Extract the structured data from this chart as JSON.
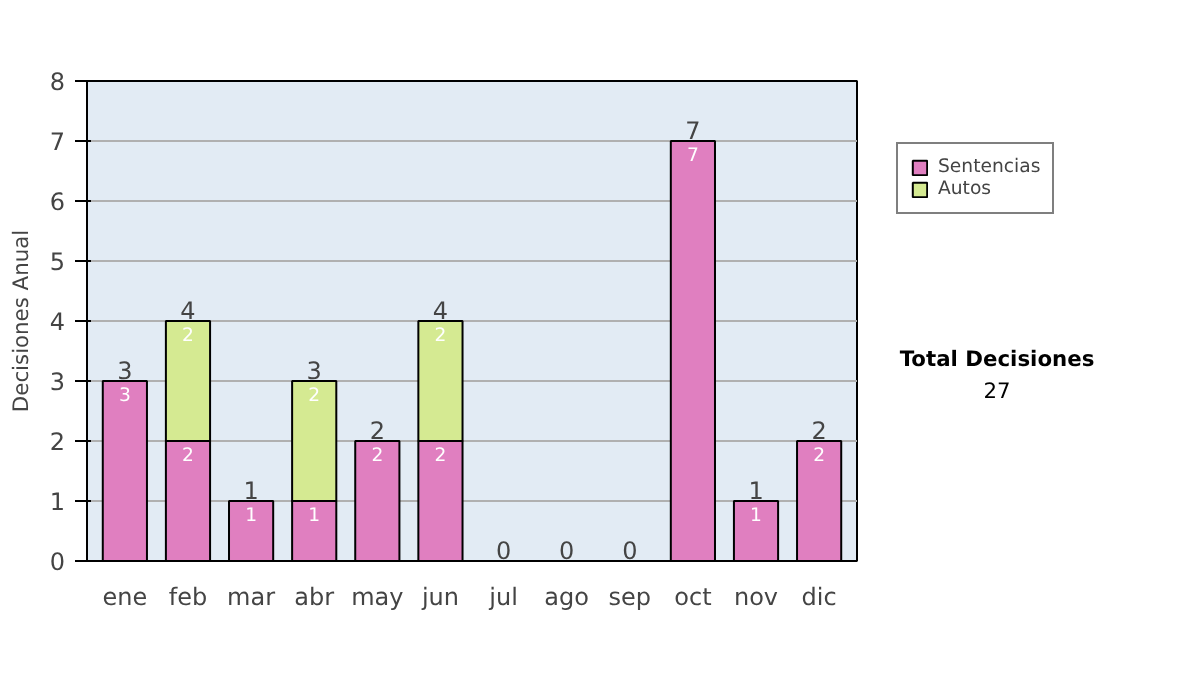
{
  "chart_data": {
    "type": "bar",
    "stacked": true,
    "ylabel": "Decisiones Anual",
    "categories": [
      "ene",
      "feb",
      "mar",
      "abr",
      "may",
      "jun",
      "jul",
      "ago",
      "sep",
      "oct",
      "nov",
      "dic"
    ],
    "series": [
      {
        "name": "Sentencias",
        "color": "#e07fc0",
        "values": [
          3,
          2,
          1,
          1,
          2,
          2,
          0,
          0,
          0,
          7,
          1,
          2
        ],
        "value_labels": [
          "3",
          "2",
          "1",
          "1",
          "2",
          "2",
          null,
          null,
          null,
          "7",
          "1",
          "2"
        ]
      },
      {
        "name": "Autos",
        "color": "#d5ea92",
        "values": [
          0,
          2,
          0,
          2,
          0,
          2,
          0,
          0,
          0,
          0,
          0,
          0
        ],
        "value_labels": [
          null,
          "2",
          null,
          "2",
          null,
          "2",
          null,
          null,
          null,
          null,
          null,
          null
        ]
      }
    ],
    "totals": [
      "3",
      "4",
      "1",
      "3",
      "2",
      "4",
      "0",
      "0",
      "0",
      "7",
      "1",
      "2"
    ],
    "ylim": [
      0,
      8
    ],
    "yticks": [
      0,
      1,
      2,
      3,
      4,
      5,
      6,
      7,
      8
    ],
    "grid": "y",
    "legend": "right",
    "annotations": [
      "Total Decisiones",
      "27"
    ]
  }
}
